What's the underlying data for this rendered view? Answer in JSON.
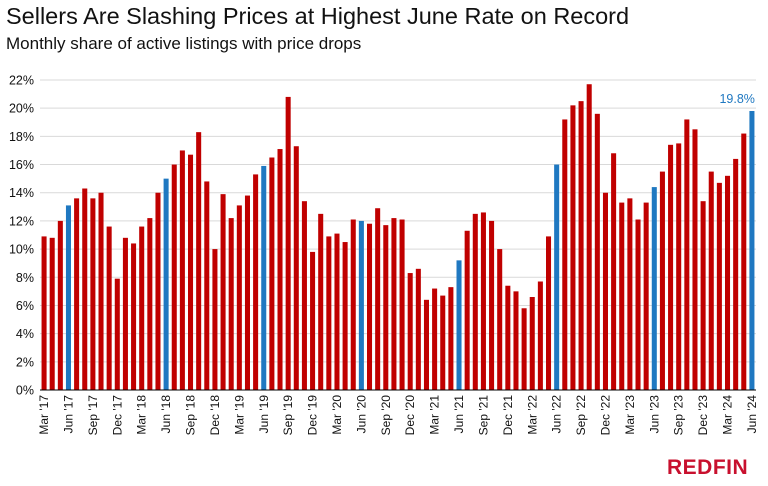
{
  "title": "Sellers Are Slashing Prices at Highest June Rate on Record",
  "subtitle": "Monthly share of active listings with price drops",
  "logo_text": "REDFIN",
  "colors": {
    "regular": "#c00000",
    "june": "#1f78c1",
    "grid": "#d9d9d9",
    "axis": "#000000",
    "callout": "#1f78c1"
  },
  "chart_data": {
    "type": "bar",
    "title": "Sellers Are Slashing Prices at Highest June Rate on Record",
    "subtitle": "Monthly share of active listings with price drops",
    "xlabel": "",
    "ylabel": "",
    "ylim": [
      0,
      22
    ],
    "yticks": [
      "0%",
      "2%",
      "4%",
      "6%",
      "8%",
      "10%",
      "12%",
      "14%",
      "16%",
      "18%",
      "20%",
      "22%"
    ],
    "xtick_labels": [
      "Mar '17",
      "Jun '17",
      "Sep '17",
      "Dec '17",
      "Mar '18",
      "Jun '18",
      "Sep '18",
      "Dec '18",
      "Mar '19",
      "Jun '19",
      "Sep '19",
      "Dec '19",
      "Mar '20",
      "Jun '20",
      "Sep '20",
      "Dec '20",
      "Mar '21",
      "Jun '21",
      "Sep '21",
      "Dec '21",
      "Mar '22",
      "Jun '22",
      "Sep '22",
      "Dec '22",
      "Mar '23",
      "Jun '23",
      "Sep '23",
      "Dec '23",
      "Mar '24",
      "Jun '24"
    ],
    "grid": true,
    "legend": "none",
    "highlight": "June bars in blue",
    "annotation": {
      "label": "19.8%",
      "category": "Jun 2024"
    },
    "categories": [
      "Mar 2017",
      "Apr 2017",
      "May 2017",
      "Jun 2017",
      "Jul 2017",
      "Aug 2017",
      "Sep 2017",
      "Oct 2017",
      "Nov 2017",
      "Dec 2017",
      "Jan 2018",
      "Feb 2018",
      "Mar 2018",
      "Apr 2018",
      "May 2018",
      "Jun 2018",
      "Jul 2018",
      "Aug 2018",
      "Sep 2018",
      "Oct 2018",
      "Nov 2018",
      "Dec 2018",
      "Jan 2019",
      "Feb 2019",
      "Mar 2019",
      "Apr 2019",
      "May 2019",
      "Jun 2019",
      "Jul 2019",
      "Aug 2019",
      "Sep 2019",
      "Oct 2019",
      "Nov 2019",
      "Dec 2019",
      "Jan 2020",
      "Feb 2020",
      "Mar 2020",
      "Apr 2020",
      "May 2020",
      "Jun 2020",
      "Jul 2020",
      "Aug 2020",
      "Sep 2020",
      "Oct 2020",
      "Nov 2020",
      "Dec 2020",
      "Jan 2021",
      "Feb 2021",
      "Mar 2021",
      "Apr 2021",
      "May 2021",
      "Jun 2021",
      "Jul 2021",
      "Aug 2021",
      "Sep 2021",
      "Oct 2021",
      "Nov 2021",
      "Dec 2021",
      "Jan 2022",
      "Feb 2022",
      "Mar 2022",
      "Apr 2022",
      "May 2022",
      "Jun 2022",
      "Jul 2022",
      "Aug 2022",
      "Sep 2022",
      "Oct 2022",
      "Nov 2022",
      "Dec 2022",
      "Jan 2023",
      "Feb 2023",
      "Mar 2023",
      "Apr 2023",
      "May 2023",
      "Jun 2023",
      "Jul 2023",
      "Aug 2023",
      "Sep 2023",
      "Oct 2023",
      "Nov 2023",
      "Dec 2023",
      "Jan 2024",
      "Feb 2024",
      "Mar 2024",
      "Apr 2024",
      "May 2024",
      "Jun 2024"
    ],
    "values": [
      10.9,
      10.8,
      12.0,
      13.1,
      13.6,
      14.3,
      13.6,
      14.0,
      11.6,
      7.9,
      10.8,
      10.4,
      11.6,
      12.2,
      14.0,
      15.0,
      16.0,
      17.0,
      16.7,
      18.3,
      14.8,
      10.0,
      13.9,
      12.2,
      13.1,
      13.8,
      15.3,
      15.9,
      16.5,
      17.1,
      20.8,
      17.3,
      13.4,
      9.8,
      12.5,
      10.9,
      11.1,
      10.5,
      12.1,
      12.0,
      11.8,
      12.9,
      11.7,
      12.2,
      12.1,
      8.3,
      8.6,
      6.4,
      7.2,
      6.7,
      7.3,
      9.2,
      11.3,
      12.5,
      12.6,
      12.0,
      10.0,
      7.4,
      7.0,
      5.8,
      6.6,
      7.7,
      10.9,
      16.0,
      19.2,
      20.2,
      20.5,
      21.7,
      19.6,
      14.0,
      16.8,
      13.3,
      13.6,
      12.1,
      13.3,
      14.4,
      15.5,
      17.4,
      17.5,
      19.2,
      18.5,
      13.4,
      15.5,
      14.7,
      15.2,
      16.4,
      18.2,
      19.8
    ],
    "bar_colors_rule": "June = blue, other months = red"
  }
}
